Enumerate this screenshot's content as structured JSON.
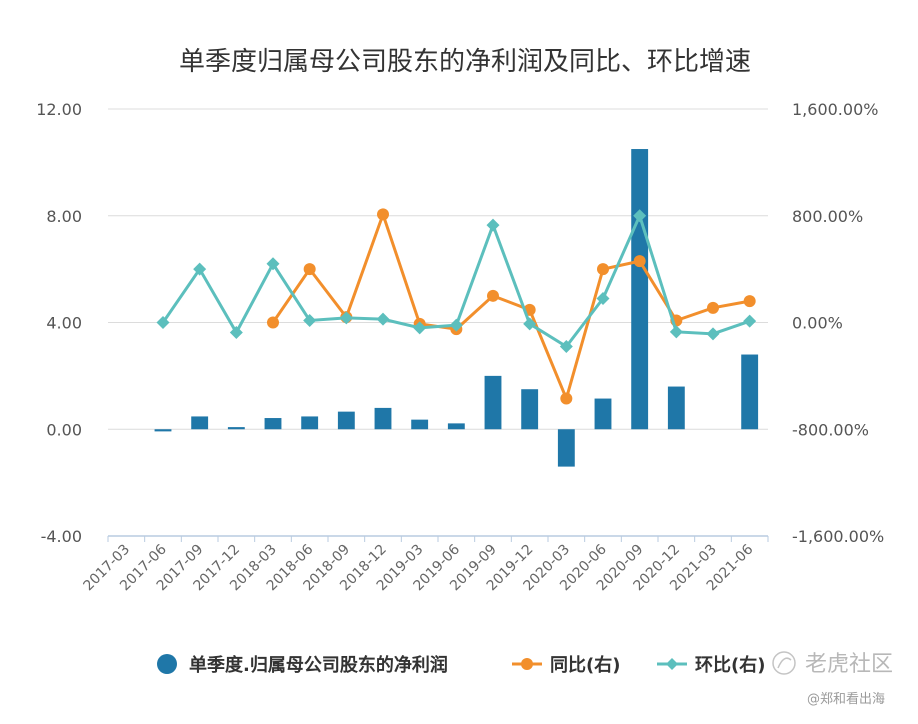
{
  "chart_data": {
    "type": "bar",
    "title": "单季度归属母公司股东的净利润及同比、环比增速",
    "categories": [
      "2017-03",
      "2017-06",
      "2017-09",
      "2017-12",
      "2018-03",
      "2018-06",
      "2018-09",
      "2018-12",
      "2019-03",
      "2019-06",
      "2019-09",
      "2019-12",
      "2020-03",
      "2020-06",
      "2020-09",
      "2020-12",
      "2021-03",
      "2021-06"
    ],
    "left_axis": {
      "ylim": [
        -4,
        12
      ],
      "ticks": [
        "12.00",
        "8.00",
        "4.00",
        "0.00",
        "-4.00"
      ]
    },
    "right_axis": {
      "ylim": [
        -1600,
        1600
      ],
      "ticks": [
        "1,600.00%",
        "800.00%",
        "0.00%",
        "-800.00%",
        "-1,600.00%"
      ]
    },
    "grid": true,
    "legend_position": "bottom",
    "series": [
      {
        "name": "单季度.归属母公司股东的净利润",
        "type": "bar",
        "axis": "left",
        "color": "#1f77a8",
        "values": [
          0,
          -0.08,
          0.48,
          0.08,
          0.42,
          0.48,
          0.66,
          0.8,
          0.36,
          0.22,
          2.0,
          1.5,
          -1.4,
          1.15,
          10.5,
          1.6,
          0.0,
          2.8
        ]
      },
      {
        "name": "同比(右)",
        "type": "line",
        "axis": "right",
        "color": "#f28f2c",
        "marker": "circle",
        "values": [
          null,
          null,
          null,
          null,
          0,
          400,
          40,
          810,
          -10,
          -50,
          200,
          95,
          -570,
          400,
          460,
          15,
          110,
          160
        ]
      },
      {
        "name": "环比(右)",
        "type": "line",
        "axis": "right",
        "color": "#5cbfbd",
        "marker": "diamond",
        "values": [
          null,
          0,
          400,
          -75,
          440,
          15,
          35,
          25,
          -40,
          -20,
          730,
          -10,
          -180,
          180,
          800,
          -70,
          -85,
          10
        ]
      }
    ]
  },
  "watermark": {
    "brand": "老虎社区",
    "author": "@郑和看出海"
  }
}
